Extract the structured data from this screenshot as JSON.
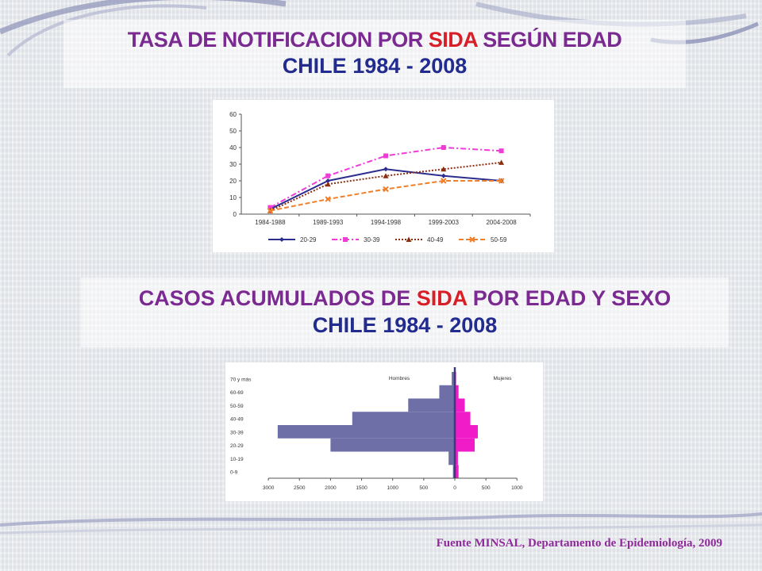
{
  "slide": {
    "title1": {
      "pre": "TASA DE NOTIFICACION POR ",
      "highlight": "SIDA",
      "post": " SEGÚN EDAD",
      "line2": "CHILE 1984 - 2008"
    },
    "title2": {
      "pre": "CASOS ACUMULADOS DE ",
      "highlight": "SIDA",
      "post": " POR EDAD Y SEXO",
      "line2": "CHILE 1984 - 2008"
    },
    "source": "Fuente MINSAL, Departamento de Epidemiología, 2009"
  },
  "chart_data": [
    {
      "type": "line",
      "categories": [
        "1984-1988",
        "1989-1993",
        "1994-1998",
        "1999-2003",
        "2004-2008"
      ],
      "ylim": [
        0,
        60
      ],
      "yticks": [
        0,
        10,
        20,
        30,
        40,
        50,
        60
      ],
      "grid": false,
      "legend": "bottom",
      "series": [
        {
          "name": "20-29",
          "values": [
            3,
            20,
            27,
            23,
            20
          ],
          "color": "#2b2d8f",
          "dash": "solid",
          "marker": "diamond"
        },
        {
          "name": "30-39",
          "values": [
            4,
            23,
            35,
            40,
            38
          ],
          "color": "#f03bd6",
          "dash": "dashdot",
          "marker": "square"
        },
        {
          "name": "40-49",
          "values": [
            2,
            18,
            23,
            27,
            31
          ],
          "color": "#8b2e10",
          "dash": "dotted",
          "marker": "triangle"
        },
        {
          "name": "50-59",
          "values": [
            2,
            9,
            15,
            20,
            20
          ],
          "color": "#f07f2a",
          "dash": "dashed",
          "marker": "x"
        }
      ]
    },
    {
      "type": "bar",
      "orientation": "horizontal-pyramid",
      "categories": [
        "0-9",
        "10-19",
        "20-29",
        "30-39",
        "40-49",
        "50-59",
        "60-69",
        "70 y más"
      ],
      "series": [
        {
          "name": "Hombres",
          "values": [
            30,
            100,
            2000,
            2850,
            1650,
            750,
            250,
            50
          ],
          "color": "#6f6fa8"
        },
        {
          "name": "Mujeres",
          "values": [
            60,
            50,
            320,
            370,
            250,
            160,
            60,
            20
          ],
          "color": "#f01cc8"
        }
      ],
      "xticks_left": [
        3000,
        2500,
        2000,
        1500,
        1000,
        500,
        0
      ],
      "xticks_right": [
        500,
        1000
      ],
      "xlim": [
        3000,
        1000
      ]
    }
  ]
}
